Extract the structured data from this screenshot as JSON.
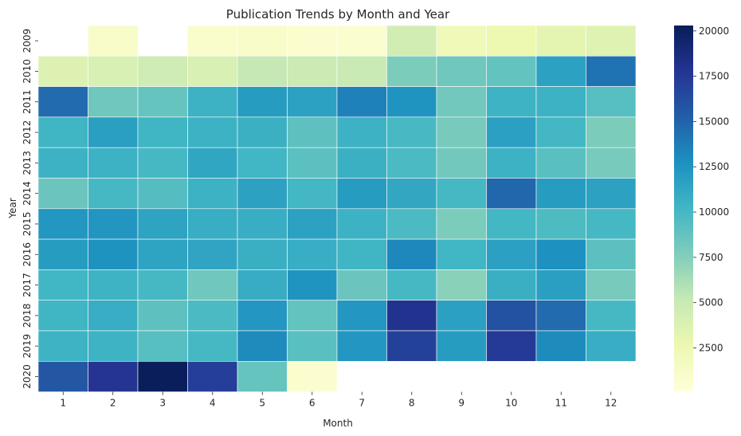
{
  "chart_data": {
    "type": "heatmap",
    "title": "Publication Trends by Month and Year",
    "xlabel": "Month",
    "ylabel": "Year",
    "x_categories": [
      "1",
      "2",
      "3",
      "4",
      "5",
      "6",
      "7",
      "8",
      "9",
      "10",
      "11",
      "12"
    ],
    "y_categories": [
      "2009",
      "2010",
      "2011",
      "2012",
      "2013",
      "2014",
      "2015",
      "2016",
      "2017",
      "2018",
      "2019",
      "2020"
    ],
    "values": [
      [
        null,
        1200,
        null,
        900,
        1100,
        700,
        800,
        4500,
        2200,
        2600,
        3200,
        3600
      ],
      [
        3700,
        4000,
        4700,
        4000,
        5200,
        4900,
        5000,
        7800,
        8300,
        8800,
        11600,
        14200
      ],
      [
        14600,
        8300,
        8700,
        10500,
        12000,
        11600,
        13500,
        12500,
        8200,
        10400,
        10500,
        9300
      ],
      [
        10300,
        11800,
        10300,
        10500,
        10600,
        9000,
        10500,
        9900,
        8000,
        11700,
        10100,
        7800
      ],
      [
        10500,
        10500,
        10000,
        11300,
        10200,
        9100,
        10600,
        9800,
        8200,
        10500,
        9200,
        8000
      ],
      [
        8500,
        10000,
        9400,
        10500,
        11600,
        10100,
        12000,
        11200,
        10000,
        14800,
        12000,
        11600
      ],
      [
        12300,
        12400,
        11500,
        10800,
        10800,
        11600,
        10500,
        9800,
        7800,
        10100,
        9700,
        10000
      ],
      [
        12000,
        12600,
        11500,
        11400,
        10700,
        10800,
        10300,
        13200,
        10200,
        11700,
        12700,
        9100
      ],
      [
        10200,
        10400,
        10000,
        8300,
        10900,
        12500,
        8500,
        10000,
        7300,
        10700,
        11800,
        8000
      ],
      [
        10300,
        10800,
        9000,
        9800,
        12300,
        8800,
        12300,
        18000,
        11700,
        16000,
        14600,
        10000
      ],
      [
        10400,
        10400,
        9300,
        10000,
        13000,
        9200,
        12300,
        17000,
        12000,
        17500,
        13000,
        10800
      ],
      [
        15700,
        17800,
        20200,
        17200,
        8700,
        700,
        null,
        null,
        null,
        null,
        null,
        null
      ]
    ],
    "colorbar_ticks": [
      "2500",
      "5000",
      "7500",
      "10000",
      "12500",
      "15000",
      "17500",
      "20000"
    ],
    "vmin": 100,
    "vmax": 20300,
    "colormap": "YlGnBu",
    "grid": true,
    "legend": "colorbar-right"
  }
}
